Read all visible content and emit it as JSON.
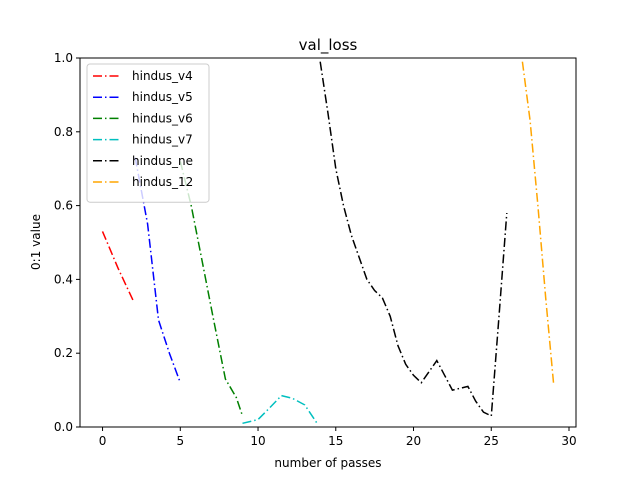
{
  "chart_data": {
    "type": "line",
    "title": "val_loss",
    "xlabel": "number of passes",
    "ylabel": "0:1 value",
    "xlim": [
      -1.45,
      30.45
    ],
    "ylim": [
      0,
      1
    ],
    "xticks": [
      0,
      5,
      10,
      15,
      20,
      25,
      30
    ],
    "yticks": [
      0.0,
      0.2,
      0.4,
      0.6,
      0.8,
      1.0
    ],
    "xtick_labels": [
      "0",
      "5",
      "10",
      "15",
      "20",
      "25",
      "30"
    ],
    "ytick_labels": [
      "0.0",
      "0.2",
      "0.4",
      "0.6",
      "0.8",
      "1.0"
    ],
    "grid": false,
    "legend_position": "top-left",
    "line_style": "dash-dot",
    "series": [
      {
        "name": "hindus_v4",
        "color": "#ff0000",
        "x": [
          0,
          1,
          2
        ],
        "y": [
          0.53,
          0.43,
          0.34
        ]
      },
      {
        "name": "hindus_v5",
        "color": "#0000ff",
        "x": [
          2.1,
          2.9,
          3.6,
          4.3,
          5
        ],
        "y": [
          0.73,
          0.55,
          0.29,
          0.2,
          0.12
        ]
      },
      {
        "name": "hindus_v6",
        "color": "#008000",
        "x": [
          5,
          5.7,
          6.4,
          7.1,
          7.9,
          8.6,
          9
        ],
        "y": [
          0.72,
          0.6,
          0.45,
          0.3,
          0.13,
          0.08,
          0.03
        ]
      },
      {
        "name": "hindus_v7",
        "color": "#00bfbf",
        "x": [
          9,
          10,
          10.7,
          11.5,
          12.2,
          13,
          13.8
        ],
        "y": [
          0.01,
          0.02,
          0.05,
          0.085,
          0.078,
          0.06,
          0.01
        ]
      },
      {
        "name": "hindus_ne",
        "color": "#000000",
        "x": [
          14,
          14.5,
          15,
          15.5,
          16,
          16.5,
          17,
          17.5,
          18,
          18.5,
          19,
          19.5,
          20,
          20.5,
          21,
          21.5,
          22,
          22.5,
          23,
          23.5,
          24,
          24.5,
          25,
          25.5,
          26
        ],
        "y": [
          0.99,
          0.85,
          0.7,
          0.6,
          0.52,
          0.46,
          0.4,
          0.37,
          0.35,
          0.3,
          0.22,
          0.17,
          0.14,
          0.12,
          0.15,
          0.18,
          0.14,
          0.1,
          0.105,
          0.11,
          0.07,
          0.04,
          0.03,
          0.3,
          0.58
        ]
      },
      {
        "name": "hindus_12",
        "color": "#ffa500",
        "x": [
          27,
          27.5,
          28,
          28.5,
          29
        ],
        "y": [
          0.99,
          0.83,
          0.6,
          0.35,
          0.12
        ]
      }
    ]
  }
}
